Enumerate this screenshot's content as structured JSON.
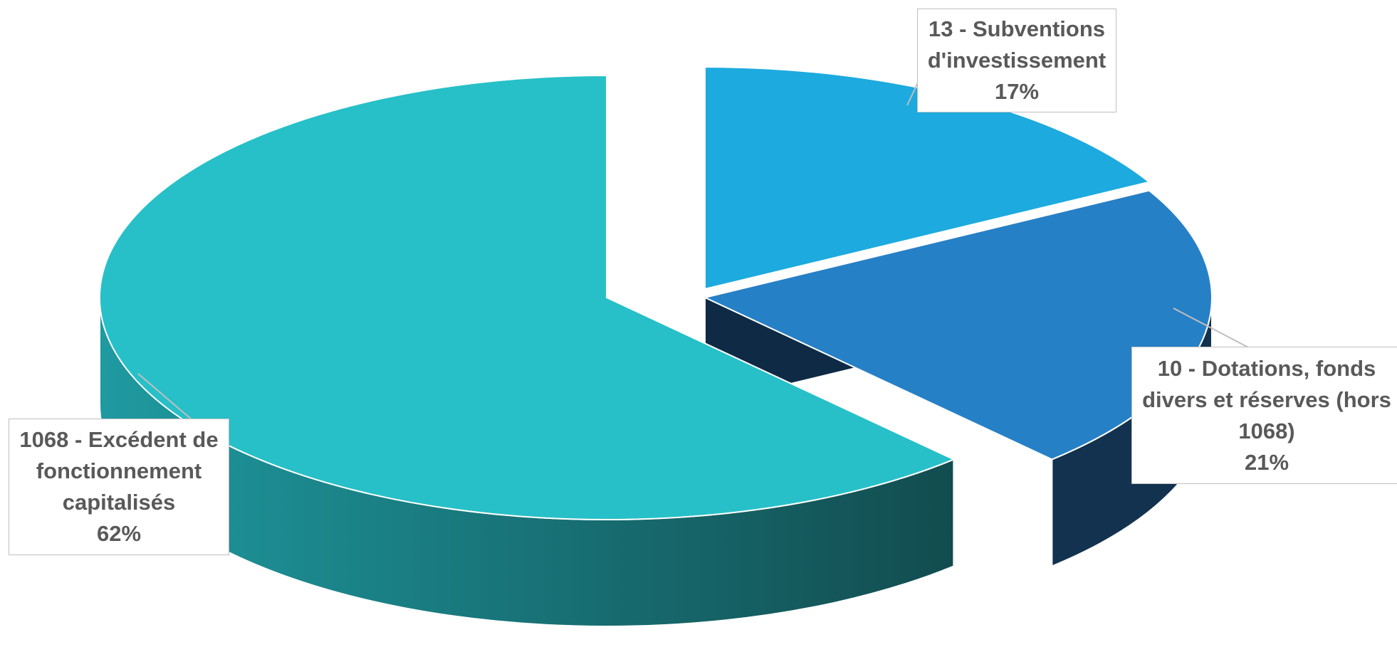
{
  "chart_data": {
    "type": "pie",
    "style": "3d-exploded",
    "title": "",
    "slices": [
      {
        "label": "1068 - Excédent de fonctionnement capitalisés",
        "label_lines": [
          "1068 - Excédent de",
          "fonctionnement",
          "capitalisés"
        ],
        "value": 62,
        "value_label": "62%",
        "color": "#27C0C8",
        "side_color_light": "#1E9AA0",
        "side_color_dark": "#124C4F"
      },
      {
        "label": "10 - Dotations, fonds divers et réserves (hors 1068)",
        "label_lines": [
          "10 - Dotations, fonds",
          "divers et réserves (hors",
          "1068)"
        ],
        "value": 21,
        "value_label": "21%",
        "color": "#2680C6",
        "side_color_light": "#12324F",
        "side_color_dark": "#0E2A45"
      },
      {
        "label": "13 - Subventions d'investissement",
        "label_lines": [
          "13 - Subventions",
          "d'investissement"
        ],
        "value": 17,
        "value_label": "17%",
        "color": "#1DAADF",
        "side_color_light": "#1580A8",
        "side_color_dark": "#0F5E7C"
      }
    ],
    "legend": "none",
    "data_labels": "callouts with category name and percentage"
  }
}
